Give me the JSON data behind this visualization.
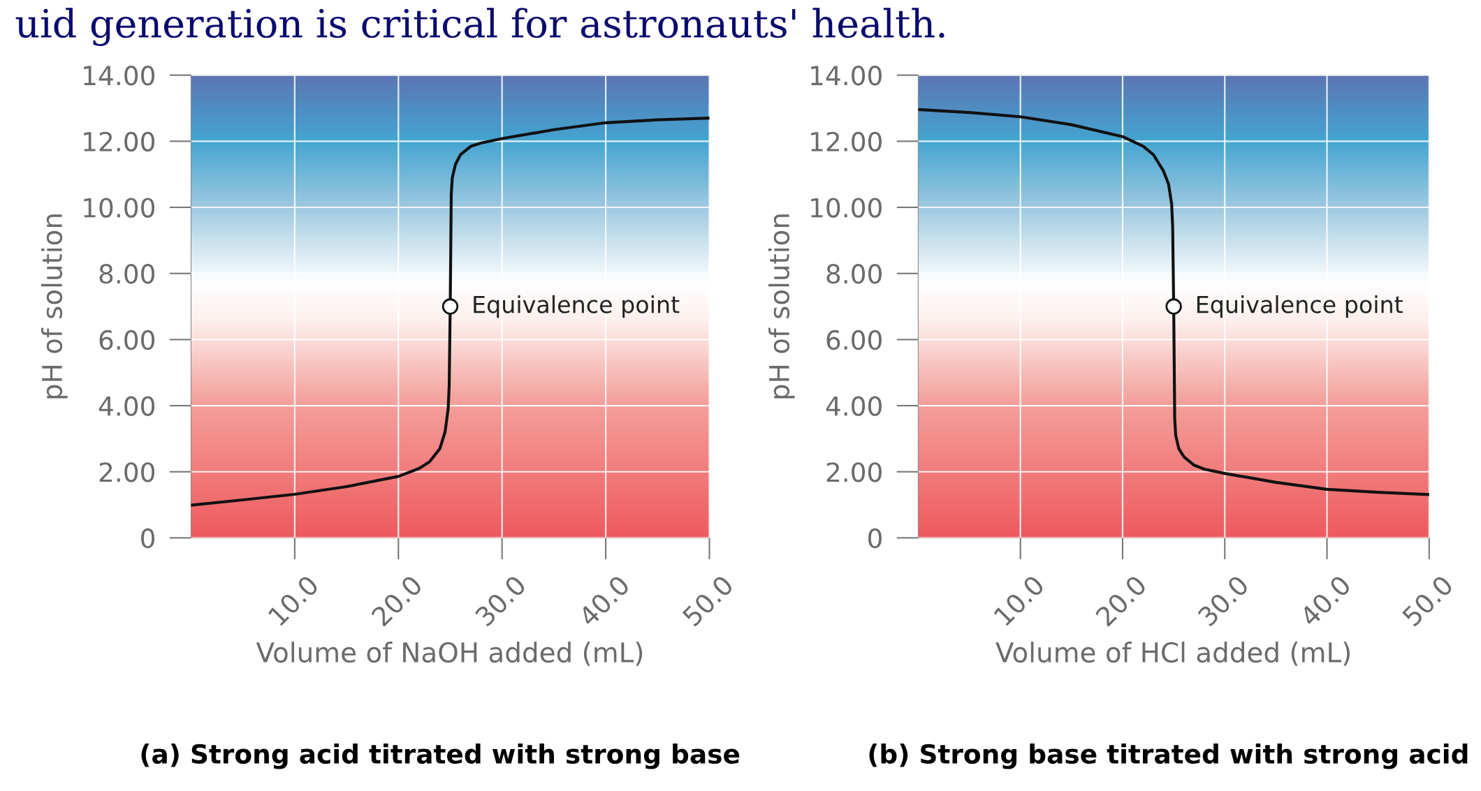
{
  "chart_data": [
    {
      "type": "line",
      "title": "(a) Strong acid titrated with strong base",
      "xlabel": "Volume of NaOH added (mL)",
      "ylabel": "pH of solution",
      "x": [
        0,
        5,
        10,
        15,
        20,
        22,
        23,
        24,
        24.5,
        24.8,
        24.9,
        25,
        25.1,
        25.2,
        25.5,
        26,
        27,
        28,
        30,
        35,
        40,
        45,
        50
      ],
      "series": [
        {
          "color": "#111111",
          "values": [
            0.99,
            1.15,
            1.32,
            1.55,
            1.86,
            2.1,
            2.3,
            2.7,
            3.2,
            3.9,
            4.6,
            7,
            10.4,
            10.9,
            11.3,
            11.6,
            11.85,
            11.95,
            12.08,
            12.35,
            12.56,
            12.65,
            12.7
          ]
        }
      ],
      "xlim": [
        0,
        50
      ],
      "ylim": [
        0,
        14
      ],
      "xticks": [
        {
          "value": 10,
          "label": "10.0"
        },
        {
          "value": 20,
          "label": "20.0"
        },
        {
          "value": 30,
          "label": "30.0"
        },
        {
          "value": 40,
          "label": "40.0"
        },
        {
          "value": 50,
          "label": "50.0"
        }
      ],
      "yticks": [
        {
          "value": 0,
          "label": "0"
        },
        {
          "value": 2,
          "label": "2.00"
        },
        {
          "value": 4,
          "label": "4.00"
        },
        {
          "value": 6,
          "label": "6.00"
        },
        {
          "value": 8,
          "label": "8.00"
        },
        {
          "value": 10,
          "label": "10.00"
        },
        {
          "value": 12,
          "label": "12.00"
        },
        {
          "value": 14,
          "label": "14.00"
        }
      ],
      "grid": true,
      "marker": "none",
      "line_style": "solid",
      "annotations": [
        {
          "text": "Equivalence point",
          "x": 25,
          "y": 7
        },
        "uid generation is critical for astronauts' health."
      ]
    },
    {
      "type": "line",
      "title": "(b) Strong base titrated with strong acid",
      "xlabel": "Volume of HCl added (mL)",
      "ylabel": "pH of solution",
      "x": [
        0,
        5,
        10,
        15,
        20,
        22,
        23,
        24,
        24.5,
        24.8,
        24.9,
        25,
        25.1,
        25.2,
        25.5,
        26,
        27,
        28,
        30,
        35,
        40,
        45,
        50
      ],
      "series": [
        {
          "color": "#111111",
          "values": [
            12.96,
            12.87,
            12.74,
            12.5,
            12.14,
            11.85,
            11.6,
            11.1,
            10.7,
            10.1,
            9.4,
            7,
            3.6,
            3.1,
            2.7,
            2.45,
            2.2,
            2.08,
            1.95,
            1.68,
            1.47,
            1.38,
            1.31
          ]
        }
      ],
      "xlim": [
        0,
        50
      ],
      "ylim": [
        0,
        14
      ],
      "xticks": [
        {
          "value": 10,
          "label": "10.0"
        },
        {
          "value": 20,
          "label": "20.0"
        },
        {
          "value": 30,
          "label": "30.0"
        },
        {
          "value": 40,
          "label": "40.0"
        },
        {
          "value": 50,
          "label": "50.0"
        }
      ],
      "yticks": [
        {
          "value": 0,
          "label": "0"
        },
        {
          "value": 2,
          "label": "2.00"
        },
        {
          "value": 4,
          "label": "4.00"
        },
        {
          "value": 6,
          "label": "6.00"
        },
        {
          "value": 8,
          "label": "8.00"
        },
        {
          "value": 10,
          "label": "10.00"
        },
        {
          "value": 12,
          "label": "12.00"
        },
        {
          "value": 14,
          "label": "14.00"
        }
      ],
      "grid": true,
      "marker": "none",
      "line_style": "solid",
      "annotations": [
        {
          "text": "Equivalence point",
          "x": 25,
          "y": 7
        }
      ]
    }
  ]
}
